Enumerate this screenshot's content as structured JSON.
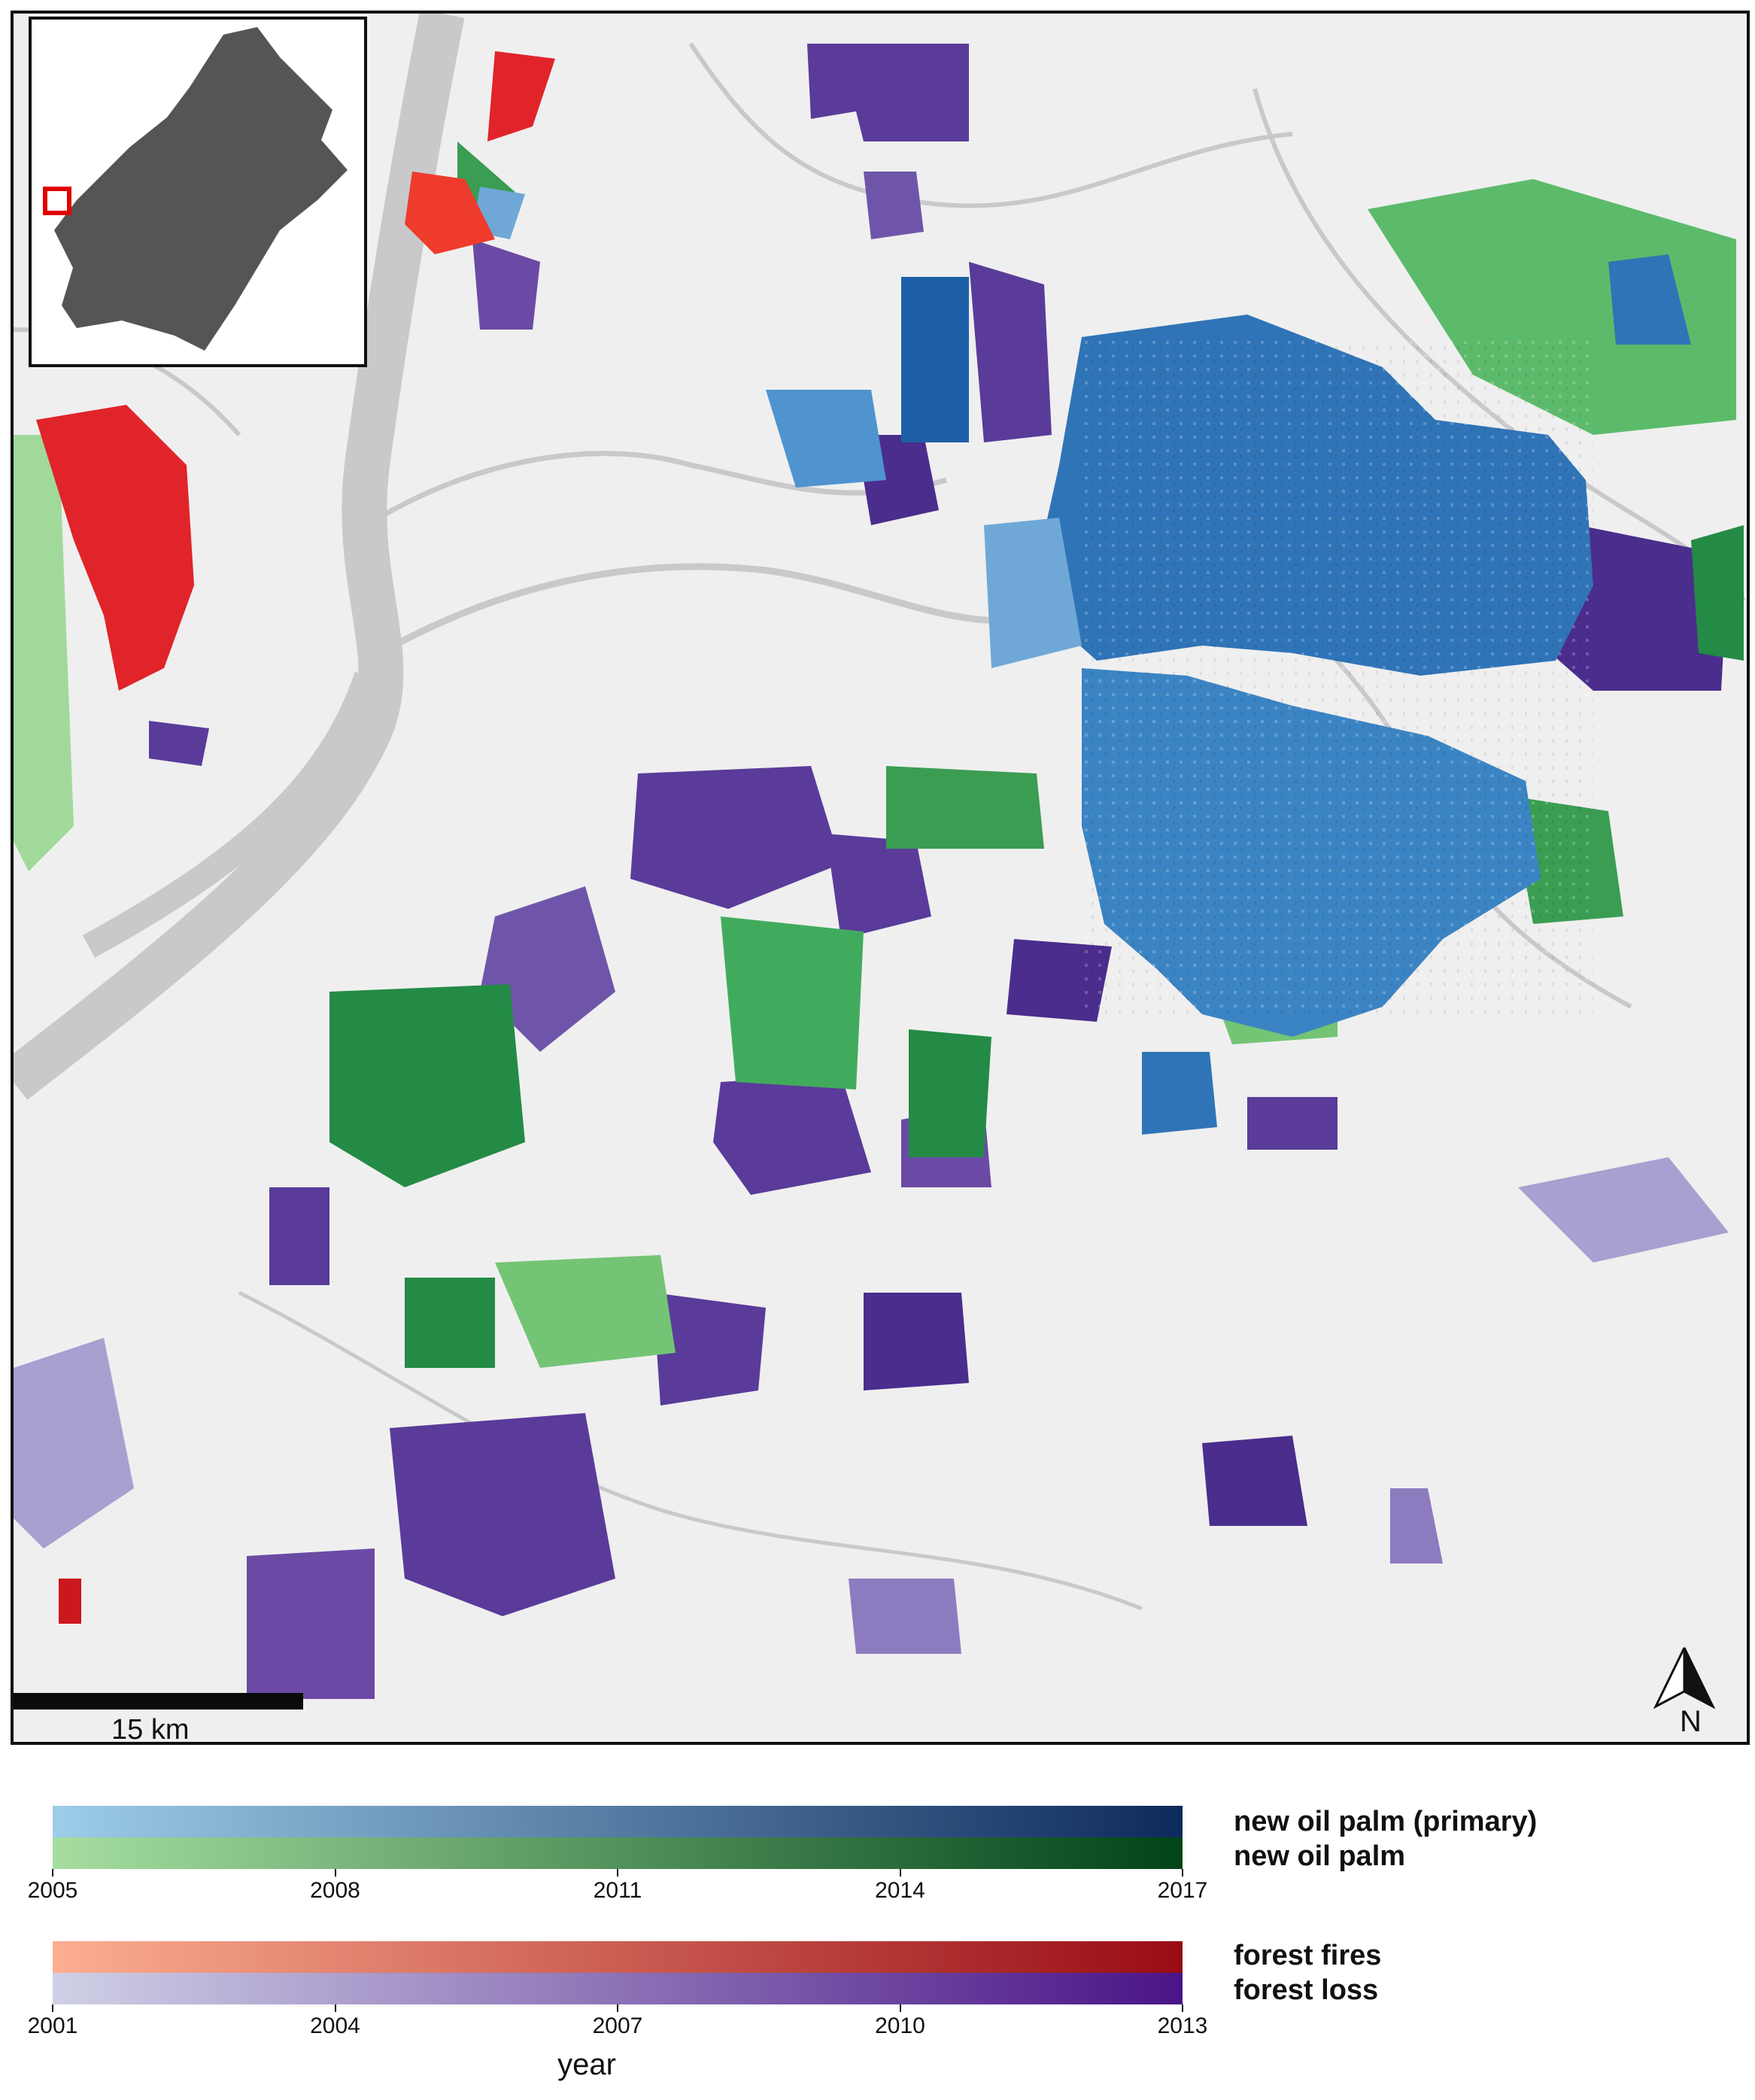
{
  "map": {
    "scale_label": "15 km",
    "north_label": "N",
    "colors": {
      "background": "#efefef",
      "river": "#c9c9cc",
      "oil_palm_primary": "#2f74b7",
      "oil_palm": "#3a9d52",
      "forest_fire": "#e0242a",
      "forest_loss": "#5a3b9a",
      "inset_land": "#555555",
      "inset_marker": "#e00000"
    }
  },
  "legend": {
    "top": {
      "labels": [
        "new oil palm (primary)",
        "new oil palm"
      ],
      "ticks": [
        "2005",
        "2008",
        "2011",
        "2014",
        "2017"
      ],
      "gradients": [
        {
          "from": "#9dcde8",
          "to": "#0d2a5c"
        },
        {
          "from": "#a6dea0",
          "to": "#004418"
        }
      ]
    },
    "bottom": {
      "labels": [
        "forest fires",
        "forest loss"
      ],
      "ticks": [
        "2001",
        "2004",
        "2007",
        "2010",
        "2013"
      ],
      "gradients": [
        {
          "from": "#fcae91",
          "to": "#990c14"
        },
        {
          "from": "#cfd0e6",
          "to": "#4a1487"
        }
      ]
    },
    "axis_title": "year"
  }
}
